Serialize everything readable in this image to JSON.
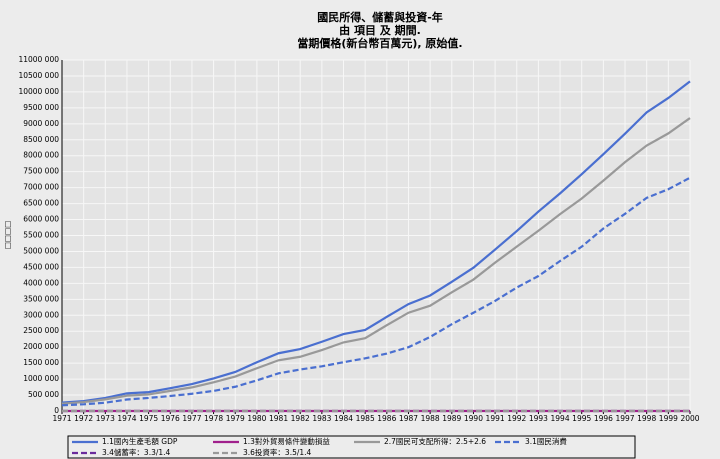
{
  "chart_data": {
    "type": "line",
    "title": [
      "國民所得、儲蓄與投資-年",
      "由 項目 及 期間.",
      "當期價格(新台幣百萬元), 原始值."
    ],
    "y_label": "□□□□",
    "x": [
      1971,
      1972,
      1973,
      1974,
      1975,
      1976,
      1977,
      1978,
      1979,
      1980,
      1981,
      1982,
      1983,
      1984,
      1985,
      1986,
      1987,
      1988,
      1989,
      1990,
      1991,
      1992,
      1993,
      1994,
      1995,
      1996,
      1997,
      1998,
      1999,
      2000
    ],
    "xlim": [
      1971,
      2000
    ],
    "xticks": [
      1971,
      1972,
      1973,
      1974,
      1975,
      1976,
      1977,
      1978,
      1979,
      1980,
      1981,
      1982,
      1983,
      1984,
      1985,
      1986,
      1987,
      1988,
      1989,
      1990,
      1991,
      1992,
      1993,
      1994,
      1995,
      1996,
      1997,
      1998,
      1999,
      2000
    ],
    "ylim": [
      0,
      11000000
    ],
    "yticks": [
      0,
      {
        "value": 500000,
        "label": "500 000"
      },
      {
        "value": 1000000,
        "label": "1000 000"
      },
      {
        "value": 1500000,
        "label": "1500 000"
      },
      {
        "value": 2000000,
        "label": "2000 000"
      },
      {
        "value": 2500000,
        "label": "2500 000"
      },
      {
        "value": 3000000,
        "label": "3000 000"
      },
      {
        "value": 3500000,
        "label": "3500 000"
      },
      {
        "value": 4000000,
        "label": "4000 000"
      },
      {
        "value": 4500000,
        "label": "4500 000"
      },
      {
        "value": 5000000,
        "label": "5000 000"
      },
      {
        "value": 5500000,
        "label": "5500 000"
      },
      {
        "value": 6000000,
        "label": "6000 000"
      },
      {
        "value": 6500000,
        "label": "6500 000"
      },
      {
        "value": 7000000,
        "label": "7000 000"
      },
      {
        "value": 7500000,
        "label": "7500 000"
      },
      {
        "value": 8000000,
        "label": "8000 000"
      },
      {
        "value": 8500000,
        "label": "8500 000"
      },
      {
        "value": 9000000,
        "label": "9000 000"
      },
      {
        "value": 9500000,
        "label": "9500 000"
      },
      {
        "value": 10000000,
        "label": "10000 000"
      },
      {
        "value": 10500000,
        "label": "10500 000"
      },
      {
        "value": 11000000,
        "label": "11000 000"
      }
    ],
    "grid": true,
    "series": [
      {
        "name": "1.1國內生產毛額 GDP",
        "color": "#4a6fd0",
        "dash": false,
        "values": [
          263000,
          312000,
          410000,
          553000,
          592000,
          715000,
          845000,
          1022000,
          1224000,
          1528000,
          1810000,
          1942000,
          2170000,
          2410000,
          2540000,
          2950000,
          3350000,
          3620000,
          4050000,
          4490000,
          5060000,
          5640000,
          6250000,
          6820000,
          7420000,
          8050000,
          8690000,
          9360000,
          9810000,
          10330000
        ]
      },
      {
        "name": "1.3對外貿易條件變動損益",
        "color": "#a0208c",
        "dash": false,
        "values": [
          0,
          0,
          0,
          0,
          0,
          0,
          0,
          0,
          0,
          0,
          0,
          0,
          0,
          0,
          0,
          0,
          0,
          0,
          0,
          0,
          0,
          0,
          0,
          0,
          0,
          0,
          0,
          0,
          0,
          0
        ]
      },
      {
        "name": "2.7國民可支配所得：2.5+2.6",
        "color": "#999999",
        "dash": false,
        "values": [
          230000,
          280000,
          365000,
          480000,
          520000,
          630000,
          740000,
          900000,
          1080000,
          1340000,
          1590000,
          1700000,
          1910000,
          2150000,
          2280000,
          2690000,
          3080000,
          3300000,
          3720000,
          4120000,
          4650000,
          5150000,
          5650000,
          6170000,
          6660000,
          7220000,
          7800000,
          8320000,
          8700000,
          9180000
        ]
      },
      {
        "name": "3.1國民消費",
        "color": "#4a6fd0",
        "dash": true,
        "values": [
          180000,
          210000,
          260000,
          360000,
          410000,
          470000,
          540000,
          630000,
          760000,
          960000,
          1180000,
          1300000,
          1400000,
          1530000,
          1650000,
          1800000,
          2000000,
          2320000,
          2720000,
          3080000,
          3450000,
          3870000,
          4230000,
          4700000,
          5150000,
          5720000,
          6180000,
          6680000,
          6950000,
          7310000
        ]
      },
      {
        "name": "3.4儲蓄率：3.3/1.4",
        "color": "#6a2a9c",
        "dash": true,
        "values": [
          0.3,
          0.32,
          0.34,
          0.31,
          0.27,
          0.33,
          0.33,
          0.34,
          0.33,
          0.32,
          0.31,
          0.3,
          0.32,
          0.33,
          0.33,
          0.38,
          0.38,
          0.34,
          0.31,
          0.29,
          0.29,
          0.28,
          0.27,
          0.26,
          0.26,
          0.25,
          0.25,
          0.25,
          0.25,
          0.24
        ]
      },
      {
        "name": "3.6投資率：3.5/1.4",
        "color": "#999999",
        "dash": true,
        "values": [
          0.26,
          0.25,
          0.29,
          0.39,
          0.31,
          0.31,
          0.28,
          0.28,
          0.33,
          0.34,
          0.3,
          0.25,
          0.23,
          0.22,
          0.19,
          0.17,
          0.2,
          0.23,
          0.23,
          0.23,
          0.23,
          0.24,
          0.25,
          0.24,
          0.24,
          0.21,
          0.22,
          0.23,
          0.22,
          0.23
        ]
      }
    ]
  }
}
